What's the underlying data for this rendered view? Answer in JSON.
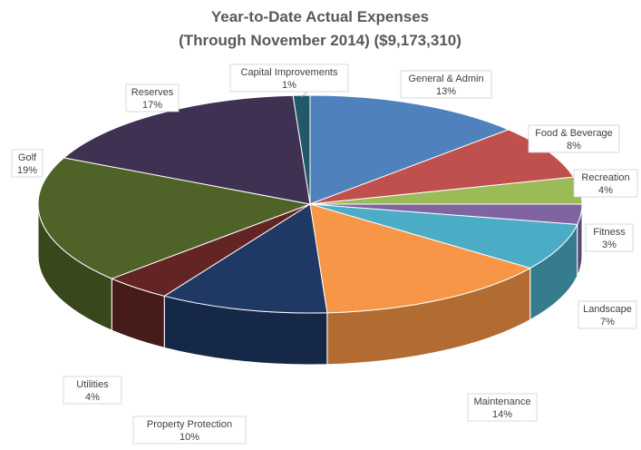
{
  "chart_data": {
    "type": "pie",
    "title": "Year-to-Date Actual Expenses",
    "subtitle": "(Through November 2014) ($9,173,310)",
    "legend": "none",
    "slices": [
      {
        "label": "General & Admin",
        "pct_label": "13%",
        "value": 13,
        "color": "#4f81bd"
      },
      {
        "label": "Food & Beverage",
        "pct_label": "8%",
        "value": 8,
        "color": "#c0504d"
      },
      {
        "label": "Recreation",
        "pct_label": "4%",
        "value": 4,
        "color": "#9bbb59"
      },
      {
        "label": "Fitness",
        "pct_label": "3%",
        "value": 3,
        "color": "#8064a2"
      },
      {
        "label": "Landscape",
        "pct_label": "7%",
        "value": 7,
        "color": "#4bacc6"
      },
      {
        "label": "Maintenance",
        "pct_label": "14%",
        "value": 14,
        "color": "#f79646"
      },
      {
        "label": "Property Protection",
        "pct_label": "10%",
        "value": 10,
        "color": "#1f3864"
      },
      {
        "label": "Utilities",
        "pct_label": "4%",
        "value": 4,
        "color": "#632523"
      },
      {
        "label": "Golf",
        "pct_label": "19%",
        "value": 19,
        "color": "#4f6228"
      },
      {
        "label": "Reserves",
        "pct_label": "17%",
        "value": 17,
        "color": "#3f3151"
      },
      {
        "label": "Capital Improvements",
        "pct_label": "1%",
        "value": 1,
        "color": "#215968"
      }
    ]
  }
}
